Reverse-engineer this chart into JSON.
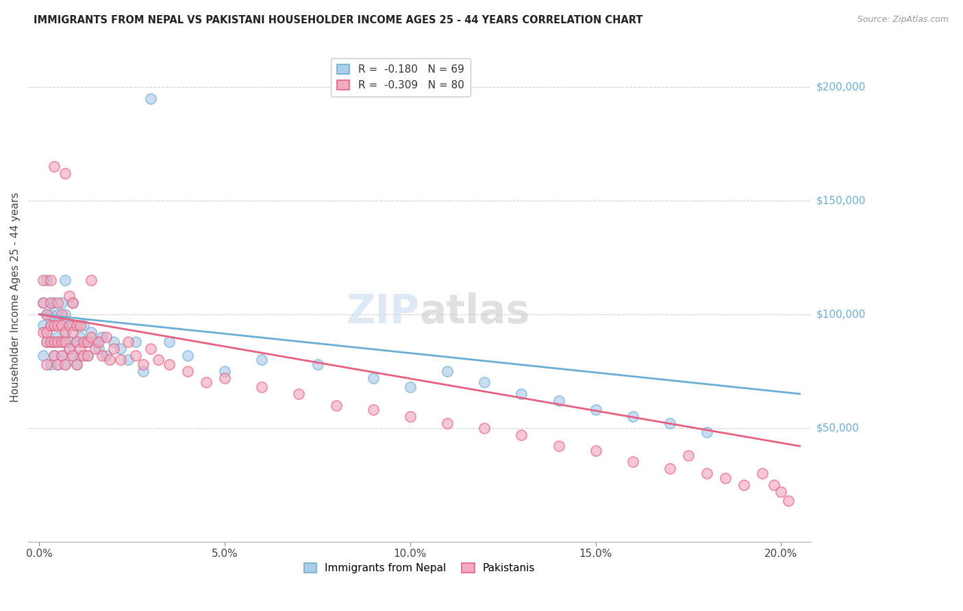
{
  "title": "IMMIGRANTS FROM NEPAL VS PAKISTANI HOUSEHOLDER INCOME AGES 25 - 44 YEARS CORRELATION CHART",
  "source": "Source: ZipAtlas.com",
  "ylabel": "Householder Income Ages 25 - 44 years",
  "ylabel_ticks": [
    "$50,000",
    "$100,000",
    "$150,000",
    "$200,000"
  ],
  "ylabel_vals": [
    50000,
    100000,
    150000,
    200000
  ],
  "xlabel_ticks": [
    "0.0%",
    "5.0%",
    "10.0%",
    "15.0%",
    "20.0%"
  ],
  "xlabel_vals": [
    0.0,
    0.05,
    0.1,
    0.15,
    0.2
  ],
  "ylim": [
    0,
    215000
  ],
  "xlim": [
    -0.003,
    0.208
  ],
  "nepal_R": -0.18,
  "nepal_N": 69,
  "pakistan_R": -0.309,
  "pakistan_N": 80,
  "nepal_color": "#aecce8",
  "pakistan_color": "#f2aabf",
  "nepal_line_color": "#6aaed6",
  "pakistan_line_color": "#e86080",
  "background_color": "#ffffff",
  "grid_color": "#d0d0d0",
  "marker_size": 120,
  "nepal_x": [
    0.001,
    0.001,
    0.001,
    0.002,
    0.002,
    0.002,
    0.002,
    0.003,
    0.003,
    0.003,
    0.003,
    0.003,
    0.004,
    0.004,
    0.004,
    0.004,
    0.005,
    0.005,
    0.005,
    0.005,
    0.006,
    0.006,
    0.006,
    0.006,
    0.007,
    0.007,
    0.007,
    0.007,
    0.008,
    0.008,
    0.008,
    0.009,
    0.009,
    0.009,
    0.01,
    0.01,
    0.01,
    0.011,
    0.011,
    0.012,
    0.012,
    0.013,
    0.013,
    0.014,
    0.015,
    0.016,
    0.017,
    0.018,
    0.02,
    0.022,
    0.024,
    0.026,
    0.028,
    0.03,
    0.035,
    0.04,
    0.05,
    0.06,
    0.075,
    0.09,
    0.1,
    0.11,
    0.12,
    0.13,
    0.14,
    0.15,
    0.16,
    0.17,
    0.18
  ],
  "nepal_y": [
    95000,
    82000,
    105000,
    88000,
    100000,
    92000,
    115000,
    78000,
    95000,
    105000,
    88000,
    100000,
    82000,
    95000,
    88000,
    105000,
    90000,
    78000,
    100000,
    88000,
    82000,
    95000,
    88000,
    105000,
    78000,
    92000,
    100000,
    115000,
    85000,
    95000,
    88000,
    82000,
    95000,
    105000,
    88000,
    78000,
    95000,
    90000,
    82000,
    88000,
    95000,
    82000,
    88000,
    92000,
    88000,
    85000,
    90000,
    82000,
    88000,
    85000,
    80000,
    88000,
    75000,
    195000,
    88000,
    82000,
    75000,
    80000,
    78000,
    72000,
    68000,
    75000,
    70000,
    65000,
    62000,
    58000,
    55000,
    52000,
    48000
  ],
  "pakistan_x": [
    0.001,
    0.001,
    0.001,
    0.002,
    0.002,
    0.002,
    0.002,
    0.003,
    0.003,
    0.003,
    0.003,
    0.004,
    0.004,
    0.004,
    0.004,
    0.005,
    0.005,
    0.005,
    0.005,
    0.006,
    0.006,
    0.006,
    0.006,
    0.007,
    0.007,
    0.007,
    0.007,
    0.008,
    0.008,
    0.008,
    0.009,
    0.009,
    0.009,
    0.01,
    0.01,
    0.01,
    0.011,
    0.011,
    0.012,
    0.012,
    0.013,
    0.013,
    0.014,
    0.014,
    0.015,
    0.016,
    0.017,
    0.018,
    0.019,
    0.02,
    0.022,
    0.024,
    0.026,
    0.028,
    0.03,
    0.032,
    0.035,
    0.04,
    0.045,
    0.05,
    0.06,
    0.07,
    0.08,
    0.09,
    0.1,
    0.11,
    0.12,
    0.13,
    0.14,
    0.15,
    0.16,
    0.17,
    0.175,
    0.18,
    0.185,
    0.19,
    0.195,
    0.198,
    0.2,
    0.202
  ],
  "pakistan_y": [
    92000,
    105000,
    115000,
    88000,
    100000,
    92000,
    78000,
    95000,
    88000,
    105000,
    115000,
    82000,
    95000,
    88000,
    165000,
    78000,
    95000,
    88000,
    105000,
    82000,
    95000,
    88000,
    100000,
    78000,
    92000,
    88000,
    162000,
    85000,
    95000,
    108000,
    82000,
    92000,
    105000,
    88000,
    78000,
    95000,
    85000,
    95000,
    82000,
    88000,
    82000,
    88000,
    90000,
    115000,
    85000,
    88000,
    82000,
    90000,
    80000,
    85000,
    80000,
    88000,
    82000,
    78000,
    85000,
    80000,
    78000,
    75000,
    70000,
    72000,
    68000,
    65000,
    60000,
    58000,
    55000,
    52000,
    50000,
    47000,
    42000,
    40000,
    35000,
    32000,
    38000,
    30000,
    28000,
    25000,
    30000,
    25000,
    22000,
    18000
  ]
}
